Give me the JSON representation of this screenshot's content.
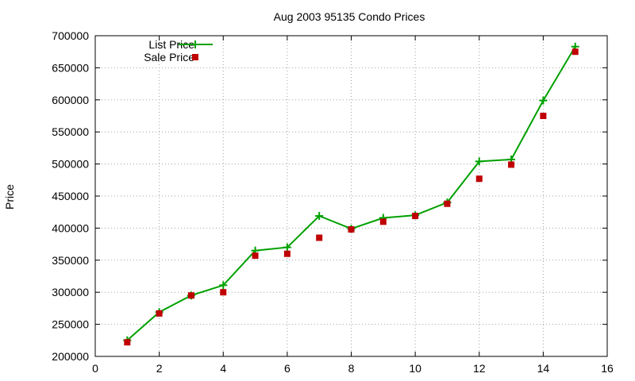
{
  "chart_data": {
    "type": "line",
    "title": "Aug 2003 95135 Condo Prices",
    "xlabel": "",
    "ylabel": "Price",
    "xlim": [
      0,
      16
    ],
    "ylim": [
      200000,
      700000
    ],
    "xticks": [
      "0",
      "2",
      "4",
      "6",
      "8",
      "10",
      "12",
      "14",
      "16"
    ],
    "yticks": [
      "200000",
      "250000",
      "300000",
      "350000",
      "400000",
      "450000",
      "500000",
      "550000",
      "600000",
      "650000",
      "700000"
    ],
    "grid": true,
    "legend_position": "top-left",
    "series": [
      {
        "name": "List Price",
        "style": "line-with-plus-markers",
        "color": "#00a000",
        "x": [
          1,
          2,
          3,
          4,
          5,
          6,
          7,
          8,
          9,
          10,
          11,
          12,
          13,
          14,
          15
        ],
        "y": [
          225000,
          269000,
          295000,
          311000,
          365000,
          370000,
          419000,
          399000,
          416000,
          420000,
          440000,
          504000,
          507000,
          599000,
          683000
        ]
      },
      {
        "name": "Sale Price",
        "style": "square-markers",
        "color": "#c00000",
        "x": [
          1,
          2,
          3,
          4,
          5,
          6,
          7,
          8,
          9,
          10,
          11,
          12,
          13,
          14,
          15
        ],
        "y": [
          222000,
          267000,
          295000,
          300000,
          357000,
          360000,
          385000,
          398000,
          410000,
          419000,
          438000,
          477000,
          499000,
          575000,
          675000
        ]
      }
    ]
  }
}
